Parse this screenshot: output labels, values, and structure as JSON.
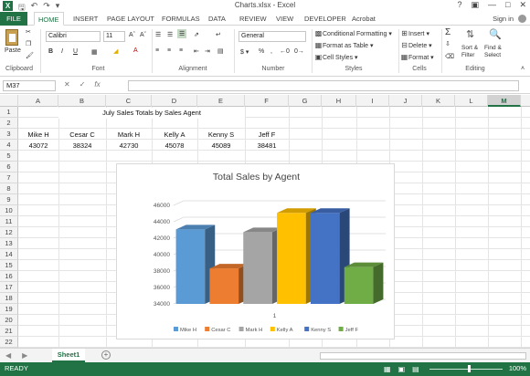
{
  "window": {
    "title": "Charts.xlsx - Excel",
    "app_logo": "X"
  },
  "ribbon_tabs": [
    "FILE",
    "HOME",
    "INSERT",
    "PAGE LAYOUT",
    "FORMULAS",
    "DATA",
    "REVIEW",
    "VIEW",
    "DEVELOPER",
    "Acrobat"
  ],
  "signin": "Sign in",
  "ribbon": {
    "groups": [
      "Clipboard",
      "Font",
      "Alignment",
      "Number",
      "Styles",
      "Cells",
      "Editing"
    ],
    "paste": "Paste",
    "font_name": "Calibri",
    "font_size": "11",
    "number_format": "General",
    "conditional_formatting": "Conditional Formatting",
    "format_as_table": "Format as Table",
    "cell_styles": "Cell Styles",
    "insert": "Insert",
    "delete": "Delete",
    "format": "Format",
    "sort_filter": "Sort & Filter",
    "find_select": "Find & Select"
  },
  "formula_bar": {
    "name_box": "M37",
    "fx": "fx",
    "value": ""
  },
  "columns": [
    "A",
    "B",
    "C",
    "D",
    "E",
    "F",
    "G",
    "H",
    "I",
    "J",
    "K",
    "L",
    "M"
  ],
  "rows": [
    "1",
    "2",
    "3",
    "4",
    "5",
    "6",
    "7",
    "8",
    "9",
    "10",
    "11",
    "12",
    "13",
    "14",
    "15",
    "16",
    "17",
    "18",
    "19",
    "20",
    "21",
    "22"
  ],
  "cells": {
    "title": "July Sales Totals by Sales Agent",
    "agents": [
      "Mike H",
      "Cesar C",
      "Mark H",
      "Kelly A",
      "Kenny S",
      "Jeff F"
    ],
    "totals": [
      "43072",
      "38324",
      "42730",
      "45078",
      "45089",
      "38481"
    ]
  },
  "chart_data": {
    "type": "bar",
    "title": "Total Sales by Agent",
    "categories": [
      "1"
    ],
    "series": [
      {
        "name": "Mike H",
        "values": [
          43072
        ],
        "color": "#5b9bd5"
      },
      {
        "name": "Cesar C",
        "values": [
          38324
        ],
        "color": "#ed7d31"
      },
      {
        "name": "Mark H",
        "values": [
          42730
        ],
        "color": "#a5a5a5"
      },
      {
        "name": "Kelly A",
        "values": [
          45078
        ],
        "color": "#ffc000"
      },
      {
        "name": "Kenny S",
        "values": [
          45089
        ],
        "color": "#4472c4"
      },
      {
        "name": "Jeff F",
        "values": [
          38481
        ],
        "color": "#70ad47"
      }
    ],
    "ylim": [
      34000,
      46000
    ],
    "yticks": [
      "34000",
      "36000",
      "38000",
      "40000",
      "42000",
      "44000",
      "46000"
    ],
    "grid": true,
    "legend": "bottom",
    "style": "3d-column"
  },
  "sheet_tabs": [
    "Sheet1"
  ],
  "status": {
    "ready": "READY",
    "zoom": "100%"
  }
}
